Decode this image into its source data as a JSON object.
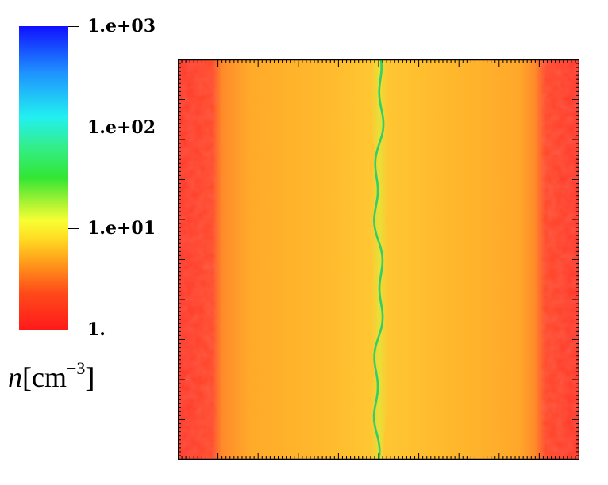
{
  "chart_data": {
    "type": "heatmap",
    "title": "",
    "xlabel": "",
    "ylabel": "",
    "colorbar": {
      "label_var": "n",
      "label_unit_base": "[cm",
      "label_unit_exp": "−3",
      "label_unit_close": "]",
      "scale": "log",
      "range": [
        1,
        1000
      ],
      "colormap": [
        "#ff1a1a",
        "#ff7a1a",
        "#ffd11a",
        "#ffff33",
        "#33e633",
        "#00ffff",
        "#0000ff"
      ],
      "ticks": [
        {
          "value": 1000,
          "label": "1.e+03"
        },
        {
          "value": 100,
          "label": "1.e+02"
        },
        {
          "value": 10,
          "label": "1.e+01"
        },
        {
          "value": 1,
          "label": "1."
        }
      ]
    },
    "field_description_values": {
      "edge_density": 1.3,
      "bulk_density": 3.5,
      "filament_density": 30
    },
    "colors": {
      "edge": "#ff3b2e",
      "bulk": "#ffa928",
      "bulk_light": "#ffc230",
      "filament": "#2fd06a",
      "filament_halo": "#c8ec3a"
    },
    "grid": false
  }
}
